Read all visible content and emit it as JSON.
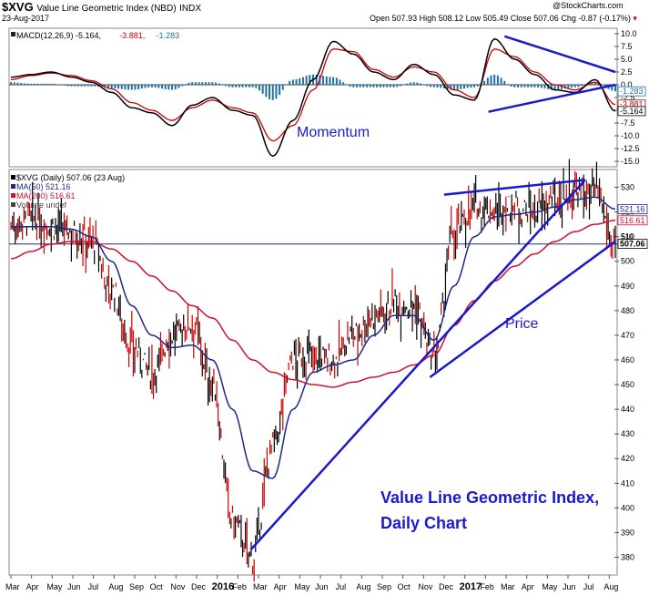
{
  "header": {
    "symbol": "$XVG",
    "name": "Value Line Geometric Index (NBD)",
    "type": "INDX",
    "date": "23-Aug-2017",
    "provider": "@StockCharts.com",
    "ohlc": {
      "open_label": "Open",
      "open": "507.93",
      "high_label": "High",
      "high": "508.12",
      "low_label": "Low",
      "low": "505.49",
      "close_label": "Close",
      "close": "507.06",
      "chg_label": "Chg",
      "chg": "-0.87 (-0.17%)"
    }
  },
  "colors": {
    "macd_line": "#000000",
    "signal_line": "#cc0000",
    "histogram": "#1f6fa8",
    "ma50": "#1a2a8a",
    "ma200": "#cc1030",
    "trendline": "#1a1acc",
    "annotation": "#1a1acc",
    "up_bar": "#000000",
    "down_bar": "#cc0000"
  },
  "chart_data": [
    {
      "type": "line",
      "panel": "MACD",
      "legend": [
        {
          "label": "MACD(12,26,9)",
          "value": "-5.164"
        },
        {
          "value": "-3.881"
        },
        {
          "value": "-1.283"
        }
      ],
      "ylim": [
        -15,
        10
      ],
      "yticks": [
        "10.0",
        "7.5",
        "5.0",
        "2.5",
        "0.0",
        "-2.5",
        "-5.0",
        "-7.5",
        "-10.0",
        "-12.5",
        "-15.0"
      ],
      "last_value_labels": [
        "-1.283",
        "-3.881",
        "-5.164"
      ],
      "x_months": [
        0,
        1,
        2,
        3,
        4,
        5,
        6,
        7,
        8,
        9,
        10,
        11,
        12,
        13,
        14,
        15,
        16,
        17,
        18,
        19,
        20,
        21,
        22,
        23,
        24,
        25,
        26,
        27,
        28,
        29,
        30
      ],
      "macd": [
        1.5,
        2.0,
        2.5,
        1.5,
        0.5,
        -1.5,
        -4.5,
        -5.5,
        -8.0,
        -4.0,
        -2.5,
        -5.0,
        -6.0,
        -14.0,
        -7.0,
        1.0,
        8.5,
        6.0,
        2.5,
        1.0,
        4.0,
        2.0,
        -2.0,
        -3.0,
        9.0,
        5.0,
        2.0,
        -1.0,
        -1.5,
        1.0,
        -5.164
      ],
      "signal": [
        1.0,
        1.8,
        2.3,
        1.8,
        0.8,
        -0.8,
        -3.5,
        -5.0,
        -7.0,
        -4.5,
        -3.0,
        -4.5,
        -5.5,
        -11.0,
        -8.0,
        -1.0,
        7.0,
        6.5,
        3.0,
        1.5,
        3.5,
        2.5,
        -1.0,
        -2.5,
        7.0,
        5.5,
        2.5,
        0.0,
        -1.0,
        0.5,
        -3.881
      ],
      "histogram": [
        0.5,
        0.2,
        0.2,
        -0.3,
        -0.3,
        -0.7,
        -1.0,
        -0.5,
        -1.0,
        0.5,
        0.5,
        -0.5,
        -0.5,
        -3.0,
        1.0,
        2.0,
        1.5,
        -0.5,
        -0.5,
        -0.5,
        0.5,
        -0.5,
        -1.0,
        -0.5,
        2.0,
        -0.5,
        -0.5,
        -1.0,
        -0.5,
        0.5,
        -1.283
      ],
      "annotations": [
        {
          "text": "Momentum"
        }
      ],
      "trendlines": [
        {
          "from": [
            24.5,
            9.5
          ],
          "to": [
            30.0,
            2.5
          ]
        },
        {
          "from": [
            23.7,
            -5.3
          ],
          "to": [
            30.0,
            0.0
          ]
        }
      ]
    },
    {
      "type": "line",
      "panel": "Price",
      "legend": [
        {
          "label": "$XVG (Daily)",
          "value": "507.06 (23 Aug)"
        },
        {
          "label": "MA(50)",
          "value": "521.16"
        },
        {
          "label": "MA(200)",
          "value": "516.61"
        },
        {
          "label": "Volume undef"
        }
      ],
      "ylim": [
        375,
        535
      ],
      "yticks": [
        "530",
        "520",
        "510",
        "500",
        "490",
        "480",
        "470",
        "460",
        "450",
        "440",
        "430",
        "420",
        "410",
        "400",
        "390",
        "380"
      ],
      "last_value_labels": [
        "521.16",
        "516.61",
        "507.06"
      ],
      "last_value_tags": [
        "510"
      ],
      "x_labels": [
        "Mar",
        "Apr",
        "May",
        "Jun",
        "Jul",
        "Aug",
        "Sep",
        "Oct",
        "Nov",
        "Dec",
        "2016",
        "Feb",
        "Mar",
        "Apr",
        "May",
        "Jun",
        "Jul",
        "Aug",
        "Sep",
        "Oct",
        "Nov",
        "Dec",
        "2017",
        "Feb",
        "Mar",
        "Apr",
        "May",
        "Jun",
        "Jul",
        "Aug"
      ],
      "close": [
        515,
        517,
        514,
        512,
        508,
        488,
        465,
        455,
        470,
        475,
        450,
        395,
        380,
        425,
        460,
        462,
        460,
        470,
        478,
        483,
        482,
        460,
        512,
        522,
        520,
        522,
        520,
        525,
        528,
        527,
        507.06
      ],
      "ma50": [
        514,
        514,
        514,
        513,
        510,
        500,
        482,
        470,
        465,
        466,
        460,
        440,
        415,
        412,
        440,
        455,
        458,
        460,
        470,
        478,
        478,
        468,
        490,
        510,
        518,
        519,
        520,
        522,
        525,
        526,
        521.16
      ],
      "ma200": [
        501,
        504,
        507,
        508,
        508,
        505,
        500,
        494,
        488,
        482,
        477,
        468,
        460,
        455,
        452,
        450,
        449,
        451,
        453,
        455,
        458,
        462,
        474,
        484,
        492,
        498,
        503,
        508,
        512,
        515,
        516.61
      ],
      "annotations": [
        {
          "text": "Price"
        },
        {
          "text": "Value Line Geometric Index,"
        },
        {
          "text": "Daily Chart"
        }
      ],
      "horizontal_line": 507,
      "trendlines": [
        {
          "from": [
            11.9,
            383
          ],
          "to": [
            28.5,
            533
          ]
        },
        {
          "from": [
            20.8,
            453
          ],
          "to": [
            30,
            508
          ]
        },
        {
          "from": [
            21.5,
            527
          ],
          "to": [
            28.5,
            533
          ]
        }
      ]
    }
  ]
}
